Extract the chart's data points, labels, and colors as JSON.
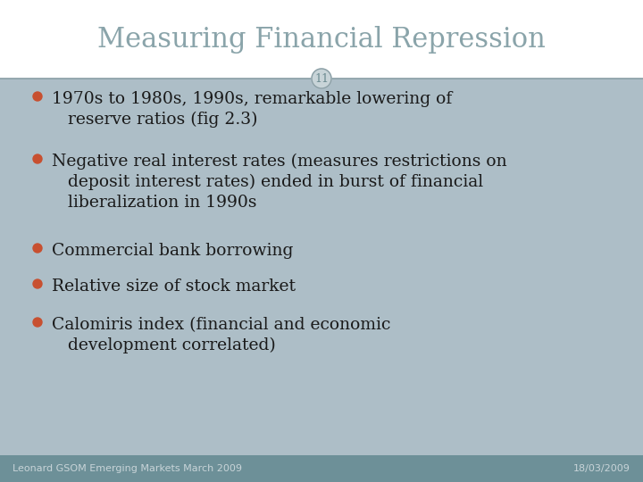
{
  "title": "Measuring Financial Repression",
  "slide_number": "11",
  "bg_color": "#ffffff",
  "content_bg_color": "#adbec7",
  "header_bg_color": "#ffffff",
  "footer_bg_color": "#6d9098",
  "title_color": "#8aa4aa",
  "content_text_color": "#1a1a1a",
  "bullet_color": "#c85030",
  "footer_text_color": "#c8d4d8",
  "footer_left": "Leonard GSOM Emerging Markets March 2009",
  "footer_right": "18/03/2009",
  "bullet_items": [
    "1970s to 1980s, 1990s, remarkable lowering of\n   reserve ratios (fig 2.3)",
    "Negative real interest rates (measures restrictions on\n   deposit interest rates) ended in burst of financial\n   liberalization in 1990s",
    "Commercial bank borrowing",
    "Relative size of stock market",
    "Calomiris index (financial and economic\n   development correlated)"
  ],
  "divider_color": "#8a9ea5",
  "circle_bg": "#c8d4d8",
  "circle_border_color": "#8a9ea5",
  "circle_text_color": "#6a8a90",
  "title_fontsize": 22,
  "bullet_fontsize": 13.5,
  "footer_fontsize": 8,
  "slide_number_fontsize": 9
}
